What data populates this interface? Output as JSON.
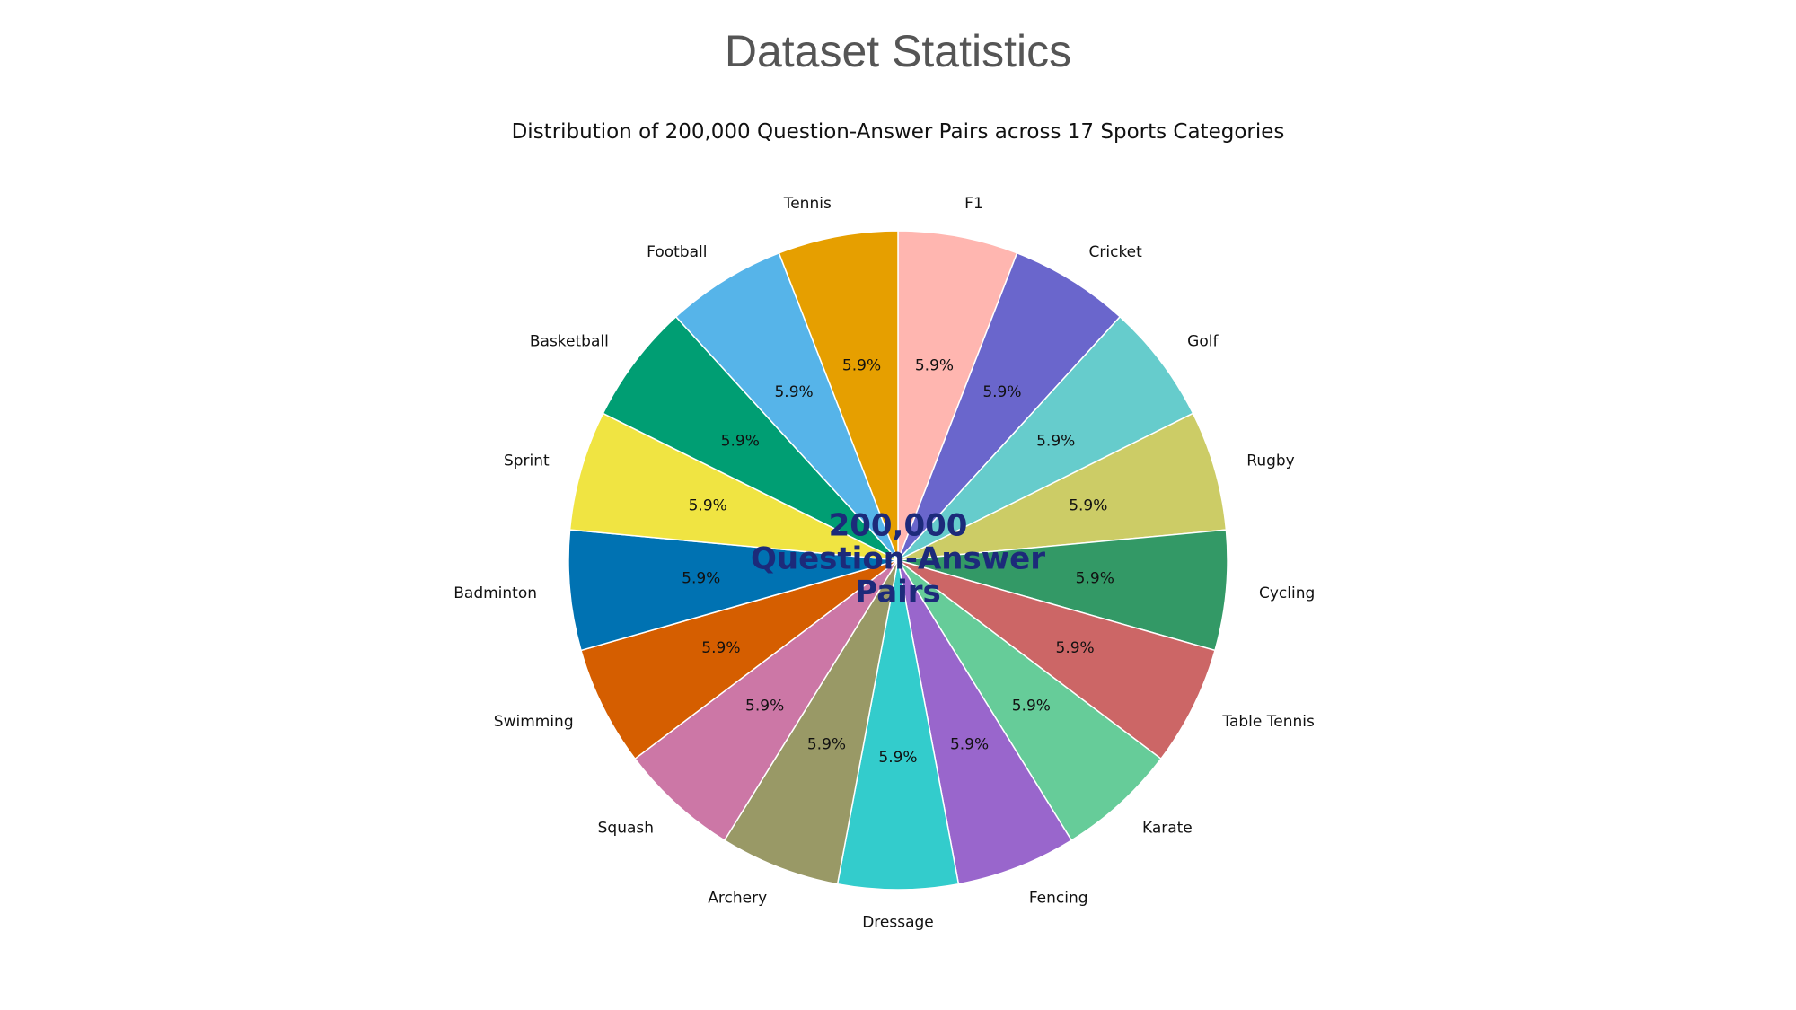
{
  "page": {
    "title": "Dataset Statistics"
  },
  "chart_data": {
    "type": "pie",
    "title": "Distribution of 200,000 Question-Answer Pairs across 17 Sports Categories",
    "start_angle_deg": 90,
    "direction": "clockwise",
    "center_text": [
      "200,000",
      "Question-Answer",
      "Pairs"
    ],
    "slice_edge_color": "#ffffff",
    "categories": [
      "F1",
      "Cricket",
      "Golf",
      "Rugby",
      "Cycling",
      "Table Tennis",
      "Karate",
      "Fencing",
      "Dressage",
      "Archery",
      "Squash",
      "Swimming",
      "Badminton",
      "Sprint",
      "Basketball",
      "Football",
      "Tennis"
    ],
    "values": [
      5.9,
      5.9,
      5.9,
      5.9,
      5.9,
      5.9,
      5.9,
      5.9,
      5.9,
      5.9,
      5.9,
      5.9,
      5.9,
      5.9,
      5.9,
      5.9,
      5.9
    ],
    "value_labels": [
      "5.9%",
      "5.9%",
      "5.9%",
      "5.9%",
      "5.9%",
      "5.9%",
      "5.9%",
      "5.9%",
      "5.9%",
      "5.9%",
      "5.9%",
      "5.9%",
      "5.9%",
      "5.9%",
      "5.9%",
      "5.9%",
      "5.9%"
    ],
    "colors": [
      "#ffb6b0",
      "#6a66cc",
      "#66cccc",
      "#cccc66",
      "#339966",
      "#cc6666",
      "#66cc99",
      "#9966cc",
      "#33cccc",
      "#999966",
      "#cc77a6",
      "#d55e00",
      "#0072b2",
      "#f0e442",
      "#009e73",
      "#56b4e9",
      "#e69f00"
    ]
  }
}
